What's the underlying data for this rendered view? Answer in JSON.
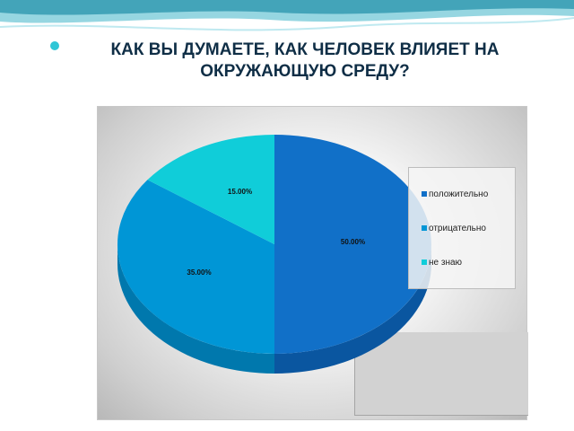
{
  "slide": {
    "title_line1": "КАК ВЫ ДУМАЕТЕ, КАК ЧЕЛОВЕК ВЛИЯЕТ НА",
    "title_line2": "ОКРУЖАЮЩУЮ СРЕДУ?"
  },
  "colors": {
    "positive": "#1170c8",
    "negative": "#0096d6",
    "dontknow": "#10cdd9",
    "positive_side": "#0a56a0",
    "negative_side": "#0078ad",
    "dontknow_side": "#0aa6b0"
  },
  "chart_data": {
    "type": "pie",
    "categories": [
      "положительно",
      "отрицательно",
      "не знаю"
    ],
    "values": [
      50,
      35,
      15
    ],
    "labels": [
      "50.00%",
      "35.00%",
      "15.00%"
    ],
    "legend": {
      "placement": "right"
    }
  }
}
